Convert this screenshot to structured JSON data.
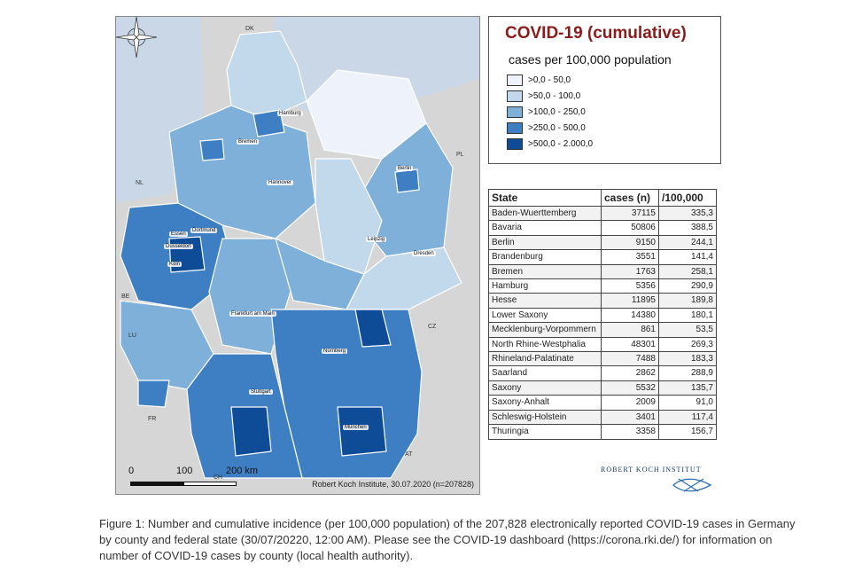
{
  "map": {
    "credit": "Robert Koch Institute, 30.07.2020 (n=207828)",
    "scale": {
      "zero": "0",
      "mid": "100",
      "end": "200 km"
    },
    "country_labels": [
      {
        "name": "DK",
        "key": "dk"
      },
      {
        "name": "PL",
        "key": "pl"
      },
      {
        "name": "NL",
        "key": "nl"
      },
      {
        "name": "BE",
        "key": "be"
      },
      {
        "name": "LU",
        "key": "lu"
      },
      {
        "name": "CZ",
        "key": "cz"
      },
      {
        "name": "FR",
        "key": "fr"
      },
      {
        "name": "CH",
        "key": "ch"
      },
      {
        "name": "AT",
        "key": "at"
      }
    ],
    "cities": [
      {
        "name": "Hamburg",
        "key": "hamburg"
      },
      {
        "name": "Bremen",
        "key": "bremen"
      },
      {
        "name": "Berlin",
        "key": "berlin"
      },
      {
        "name": "Hannover",
        "key": "hannover"
      },
      {
        "name": "Essen",
        "key": "essen"
      },
      {
        "name": "Dortmund",
        "key": "dortmund"
      },
      {
        "name": "Düsseldorf",
        "key": "duesseldorf"
      },
      {
        "name": "Köln",
        "key": "koeln"
      },
      {
        "name": "Leipzig",
        "key": "leipzig"
      },
      {
        "name": "Dresden",
        "key": "dresden"
      },
      {
        "name": "Frankfurt am Main",
        "key": "frankfurt"
      },
      {
        "name": "Nürnberg",
        "key": "nuernberg"
      },
      {
        "name": "Stuttgart",
        "key": "stuttgart"
      },
      {
        "name": "München",
        "key": "muenchen"
      }
    ]
  },
  "legend": {
    "title": "COVID-19 (cumulative)",
    "subtitle": "cases per 100,000 population",
    "classes": [
      {
        "label": ">0,0 - 50,0",
        "color": "#eef3fb"
      },
      {
        "label": ">50,0 - 100,0",
        "color": "#c2d9ec"
      },
      {
        "label": ">100,0 - 250,0",
        "color": "#7fb0d9"
      },
      {
        "label": ">250,0 - 500,0",
        "color": "#3d7fc2"
      },
      {
        "label": ">500,0 - 2.000,0",
        "color": "#0e4c97"
      }
    ]
  },
  "table": {
    "headers": [
      "State",
      "cases (n)",
      "/100,000"
    ],
    "rows": [
      [
        "Baden-Wuerttemberg",
        "37115",
        "335,3"
      ],
      [
        "Bavaria",
        "50806",
        "388,5"
      ],
      [
        "Berlin",
        "9150",
        "244,1"
      ],
      [
        "Brandenburg",
        "3551",
        "141,4"
      ],
      [
        "Bremen",
        "1763",
        "258,1"
      ],
      [
        "Hamburg",
        "5356",
        "290,9"
      ],
      [
        "Hesse",
        "11895",
        "189,8"
      ],
      [
        "Lower Saxony",
        "14380",
        "180,1"
      ],
      [
        "Mecklenburg-Vorpommern",
        "861",
        "53,5"
      ],
      [
        "North Rhine-Westphalia",
        "48301",
        "269,3"
      ],
      [
        "Rhineland-Palatinate",
        "7488",
        "183,3"
      ],
      [
        "Saarland",
        "2862",
        "288,9"
      ],
      [
        "Saxony",
        "5532",
        "135,7"
      ],
      [
        "Saxony-Anhalt",
        "2009",
        "91,0"
      ],
      [
        "Schleswig-Holstein",
        "3401",
        "117,4"
      ],
      [
        "Thuringia",
        "3358",
        "156,7"
      ]
    ]
  },
  "logo": {
    "text": "ROBERT KOCH INSTITUT"
  },
  "caption": "Figure 1: Number and cumulative incidence (per 100,000 population) of the 207,828 electronically reported COVID-19 cases in Germany by county and federal state (30/07/20220, 12:00 AM). Please see the COVID-19 dashboard (https://corona.rki.de/) for information on number of COVID-19 cases by county (local health authority)."
}
